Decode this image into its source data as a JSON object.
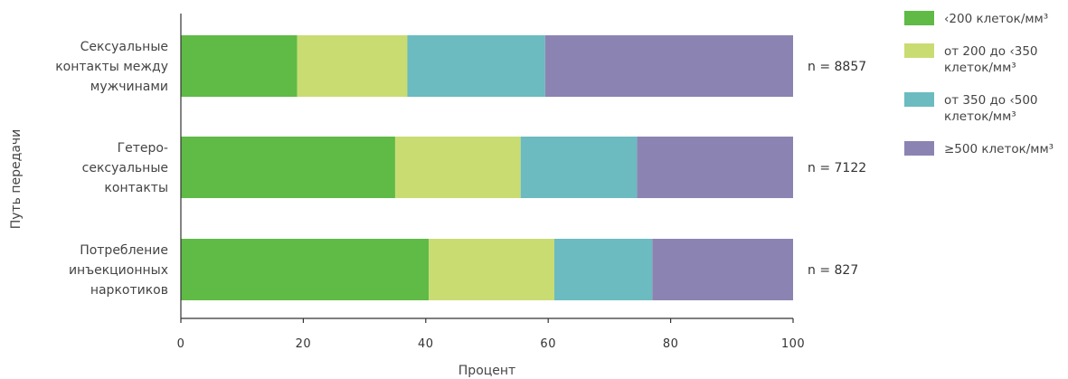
{
  "chart_data": {
    "type": "bar",
    "orientation": "horizontal",
    "stacked": true,
    "categories": [
      [
        "Сексуальные",
        "контакты между",
        "мужчинами"
      ],
      [
        "Гетеро-",
        "сексуальные",
        "контакты"
      ],
      [
        "Потребление",
        "инъекционных",
        "наркотиков"
      ]
    ],
    "n_labels": [
      "n = 8857",
      "n = 7122",
      "n = 827"
    ],
    "series": [
      {
        "name": "<200 клеток/мм³",
        "color": "#5fba46",
        "values": [
          19,
          35,
          40.5
        ]
      },
      {
        "name": "от 200 до <350 клеток/мм³",
        "color": "#c9dc72",
        "values": [
          18,
          20.5,
          20.5
        ]
      },
      {
        "name": "от 350 до <500 клеток/мм³",
        "color": "#6bbbc0",
        "values": [
          22.5,
          19,
          16
        ]
      },
      {
        "name": "≥500 клеток/мм³",
        "color": "#8b84b2",
        "values": [
          40.5,
          25.5,
          23
        ]
      }
    ],
    "xlim": [
      0,
      100
    ],
    "xticks": [
      0,
      20,
      40,
      60,
      80,
      100
    ],
    "xlabel": "Процент",
    "ylabel": "Путь передачи",
    "grid": false,
    "legend_position": "top-right"
  },
  "legend": {
    "items": [
      {
        "lines": [
          "‹200 клеток/мм³"
        ],
        "color": "#5fba46"
      },
      {
        "lines": [
          "от 200 до ‹350",
          "клеток/мм³"
        ],
        "color": "#c9dc72"
      },
      {
        "lines": [
          "от 350 до ‹500",
          "клеток/мм³"
        ],
        "color": "#6bbbc0"
      },
      {
        "lines": [
          "≥500 клеток/мм³"
        ],
        "color": "#8b84b2"
      }
    ]
  },
  "colors": {
    "axis": "#333333"
  }
}
